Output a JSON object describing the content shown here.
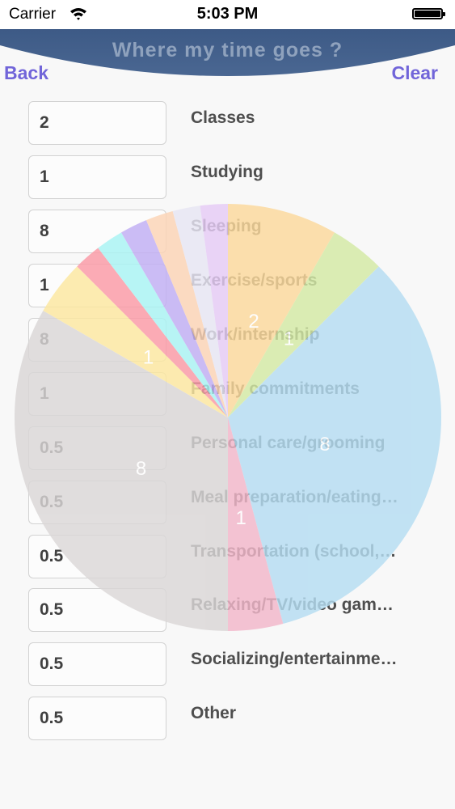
{
  "status_bar": {
    "carrier": "Carrier",
    "time": "5:03 PM"
  },
  "header": {
    "title": "Where my time goes ?",
    "back_label": "Back",
    "clear_label": "Clear"
  },
  "rows": [
    {
      "label": "Classes",
      "hours": "2"
    },
    {
      "label": "Studying",
      "hours": "1"
    },
    {
      "label": "Sleeping",
      "hours": "8"
    },
    {
      "label": "Exercise/sports",
      "hours": "1"
    },
    {
      "label": "Work/internship",
      "hours": "8"
    },
    {
      "label": "Family commitments",
      "hours": "1"
    },
    {
      "label": "Personal care/grooming",
      "hours": "0.5"
    },
    {
      "label": "Meal preparation/eating…",
      "hours": "0.5"
    },
    {
      "label": "Transportation (school,…",
      "hours": "0.5"
    },
    {
      "label": "Relaxing/TV/video gam…",
      "hours": "0.5"
    },
    {
      "label": "Socializing/entertainme…",
      "hours": "0.5"
    },
    {
      "label": "Other",
      "hours": "0.5"
    }
  ],
  "chart_data": {
    "type": "pie",
    "total": 24,
    "slices": [
      {
        "category": "Classes",
        "value": 2,
        "color": "#fcd99c",
        "label": "2"
      },
      {
        "category": "Studying",
        "value": 1,
        "color": "#d4eaa4",
        "label": "1"
      },
      {
        "category": "Sleeping",
        "value": 8,
        "color": "#b5ddf2",
        "label": "8"
      },
      {
        "category": "Exercise/sports",
        "value": 1,
        "color": "#f2b7ca",
        "label": "1"
      },
      {
        "category": "Work/internship",
        "value": 8,
        "color": "#dad7d7",
        "label": "8"
      },
      {
        "category": "Family commitments",
        "value": 1,
        "color": "#fde8a0",
        "label": "1"
      },
      {
        "category": "Personal care/grooming",
        "value": 0.5,
        "color": "#fb9aa6",
        "label": ""
      },
      {
        "category": "Meal preparation/eating",
        "value": 0.5,
        "color": "#a9f4f4",
        "label": ""
      },
      {
        "category": "Transportation (school,",
        "value": 0.5,
        "color": "#c1aef4",
        "label": ""
      },
      {
        "category": "Relaxing/TV/video gam",
        "value": 0.5,
        "color": "#fcd4b6",
        "label": ""
      },
      {
        "category": "Socializing/entertainme",
        "value": 0.5,
        "color": "#e8e6f4",
        "label": ""
      },
      {
        "category": "Other",
        "value": 0.5,
        "color": "#e6ccf6",
        "label": ""
      }
    ]
  }
}
